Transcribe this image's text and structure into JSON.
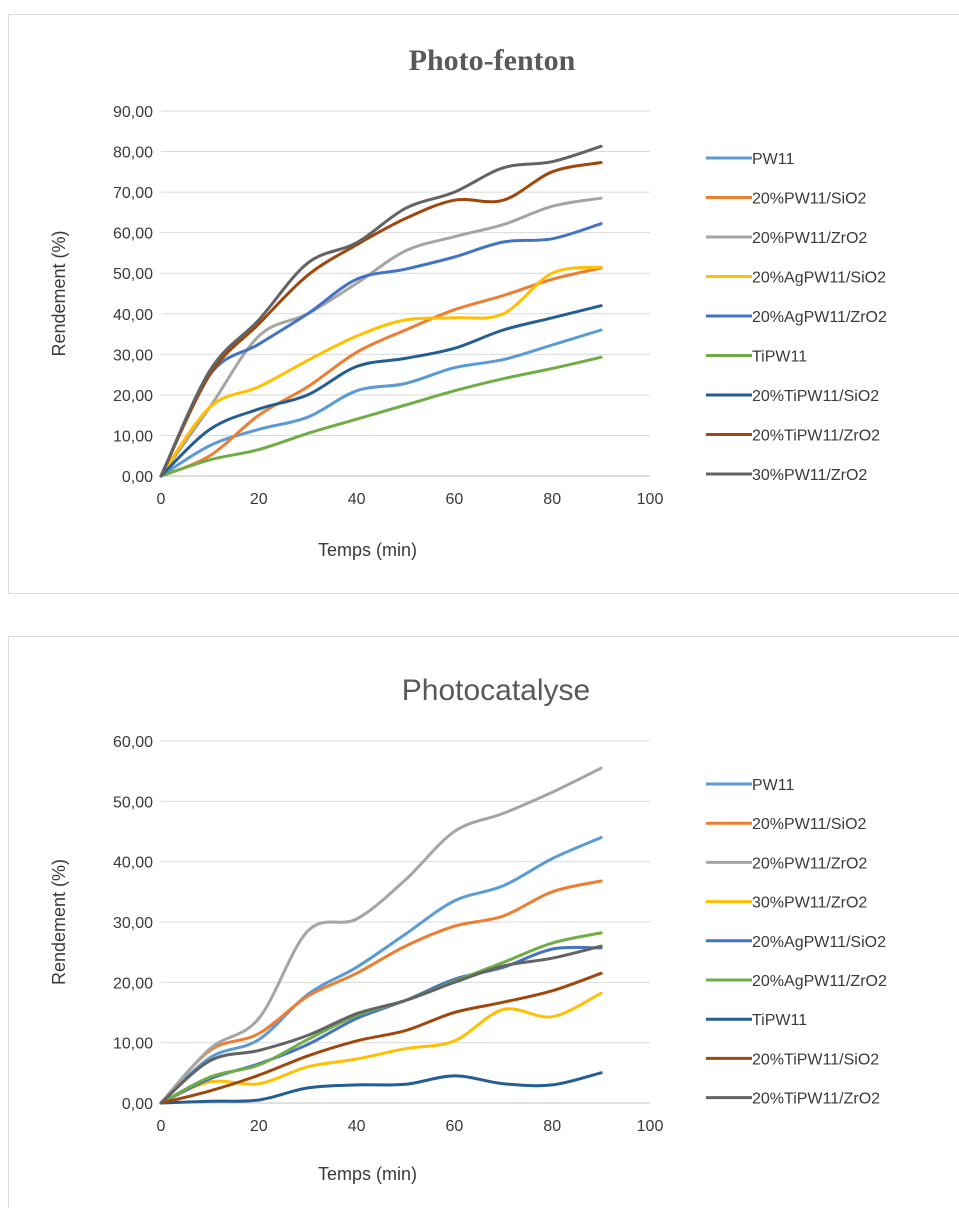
{
  "chart_data": [
    {
      "type": "line",
      "title": "Photo-fenton",
      "xlabel": "Temps (min)",
      "ylabel": "Rendement (%)",
      "xlim": [
        0,
        100
      ],
      "ylim": [
        0,
        90
      ],
      "xticks": [
        "0",
        "20",
        "40",
        "60",
        "80",
        "100"
      ],
      "yticks": [
        "0,00",
        "10,00",
        "20,00",
        "30,00",
        "40,00",
        "50,00",
        "60,00",
        "70,00",
        "80,00",
        "90,00"
      ],
      "grid": true,
      "legend_position": "right",
      "x": [
        0,
        10,
        20,
        30,
        40,
        50,
        60,
        70,
        80,
        90
      ],
      "series": [
        {
          "name": "PW11",
          "color": "#5b9bd5",
          "values": [
            0,
            7.5,
            11.5,
            14.5,
            21,
            22.8,
            26.7,
            28.7,
            32.3,
            36
          ]
        },
        {
          "name": "20%PW11/SiO2",
          "color": "#ed7d31",
          "values": [
            0,
            5,
            15,
            22,
            30.5,
            36,
            41,
            44.5,
            48.5,
            51.3
          ]
        },
        {
          "name": "20%PW11/ZrO2",
          "color": "#a5a5a5",
          "values": [
            0,
            17,
            34.5,
            40,
            47.5,
            55.5,
            59,
            62,
            66.5,
            68.5
          ]
        },
        {
          "name": "20%AgPW11/SiO2",
          "color": "#ffc000",
          "values": [
            0,
            17,
            22,
            28.5,
            34.5,
            38.5,
            39,
            40,
            50,
            51.5
          ]
        },
        {
          "name": "20%AgPW11/ZrO2",
          "color": "#4472c4",
          "values": [
            0,
            25,
            32.5,
            40,
            48.5,
            51,
            54,
            57.7,
            58.5,
            62.2
          ]
        },
        {
          "name": "TiPW11",
          "color": "#70ad47",
          "values": [
            0,
            4,
            6.5,
            10.5,
            14,
            17.5,
            21,
            24,
            26.5,
            29.3
          ]
        },
        {
          "name": "20%TiPW11/SiO2",
          "color": "#255e91",
          "values": [
            0,
            11.5,
            16.5,
            20,
            27,
            29,
            31.5,
            36,
            39,
            42
          ]
        },
        {
          "name": "20%TiPW11/ZrO2",
          "color": "#9e480e",
          "values": [
            0,
            25,
            37.5,
            49.5,
            57,
            63.5,
            68,
            68,
            75,
            77.3
          ]
        },
        {
          "name": "30%PW11/ZrO2",
          "color": "#636363",
          "values": [
            0,
            26,
            38.5,
            52.5,
            57.5,
            66,
            70,
            76,
            77.5,
            81.3
          ]
        }
      ]
    },
    {
      "type": "line",
      "title": "Photocatalyse",
      "xlabel": "Temps (min)",
      "ylabel": "Rendement (%)",
      "xlim": [
        0,
        100
      ],
      "ylim": [
        0,
        60
      ],
      "xticks": [
        "0",
        "20",
        "40",
        "60",
        "80",
        "100"
      ],
      "yticks": [
        "0,00",
        "10,00",
        "20,00",
        "30,00",
        "40,00",
        "50,00",
        "60,00"
      ],
      "grid": true,
      "legend_position": "right",
      "x": [
        0,
        10,
        20,
        30,
        40,
        50,
        60,
        70,
        80,
        90
      ],
      "series": [
        {
          "name": "PW11",
          "color": "#5b9bd5",
          "values": [
            0,
            7.5,
            10.5,
            18,
            22.5,
            28,
            33.5,
            36,
            40.5,
            44
          ]
        },
        {
          "name": "20%PW11/SiO2",
          "color": "#ed7d31",
          "values": [
            0,
            8.7,
            11.5,
            17.7,
            21.5,
            26,
            29.3,
            31,
            35,
            36.8
          ]
        },
        {
          "name": "20%PW11/ZrO2",
          "color": "#a5a5a5",
          "values": [
            0,
            9,
            14,
            28.5,
            30.5,
            37,
            45,
            48,
            51.5,
            55.5
          ]
        },
        {
          "name": "30%PW11/ZrO2",
          "color": "#ffc000",
          "values": [
            0,
            3.5,
            3.2,
            6,
            7.3,
            9,
            10.3,
            15.5,
            14.3,
            18.2
          ]
        },
        {
          "name": "20%AgPW11/SiO2",
          "color": "#4472c4",
          "values": [
            0,
            4,
            6.5,
            9.7,
            14,
            17,
            20.5,
            22.5,
            25.5,
            25.7
          ]
        },
        {
          "name": "20%AgPW11/ZrO2",
          "color": "#70ad47",
          "values": [
            0,
            4.3,
            6.3,
            10.5,
            14.5,
            17,
            20.2,
            23.3,
            26.5,
            28.2
          ]
        },
        {
          "name": "TiPW11",
          "color": "#255e91",
          "values": [
            0,
            0.3,
            0.5,
            2.5,
            3,
            3.1,
            4.5,
            3.2,
            3,
            5
          ]
        },
        {
          "name": "20%TiPW11/SiO2",
          "color": "#9e480e",
          "values": [
            0,
            2,
            4.6,
            7.8,
            10.3,
            12,
            15,
            16.7,
            18.6,
            21.5
          ]
        },
        {
          "name": "20%TiPW11/ZrO2",
          "color": "#636363",
          "values": [
            0,
            7,
            8.7,
            11.2,
            14.8,
            17,
            20,
            22.7,
            24,
            26
          ]
        }
      ]
    }
  ]
}
